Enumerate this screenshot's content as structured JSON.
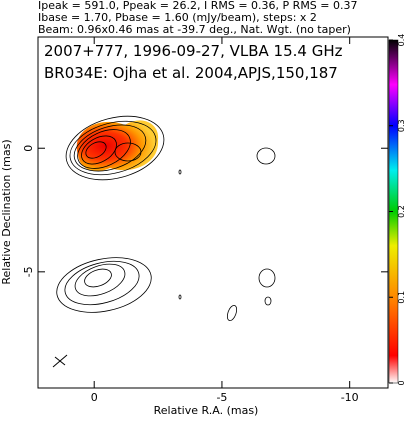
{
  "header": {
    "lines": [
      "Ipeak = 591.0, Ppeak = 26.2, I RMS = 0.36, P RMS = 0.37",
      "Ibase = 1.70, Pbase = 1.60 (mJy/beam), steps: x 2",
      "Beam: 0.96x0.46 mas at -39.7 deg., Nat. Wgt. (no taper)"
    ]
  },
  "chart_data": {
    "type": "contour",
    "annotations": [
      "2007+777, 1996-09-27, VLBA 15.4 GHz",
      "BR034E: Ojha et al. 2004,APJS,150,187"
    ],
    "x_label": "Relative R.A. (mas)",
    "y_label": "Relative Declination (mas)",
    "xlim": [
      2.2,
      -11.5
    ],
    "xticks": [
      0,
      -5,
      -10
    ],
    "ylim": [
      -9.7,
      4.5
    ],
    "yticks": [
      -5,
      0
    ],
    "colorbar": {
      "lim": [
        0,
        0.4
      ],
      "ticks": [
        0,
        0.1,
        0.2,
        0.3,
        0.4
      ]
    }
  }
}
